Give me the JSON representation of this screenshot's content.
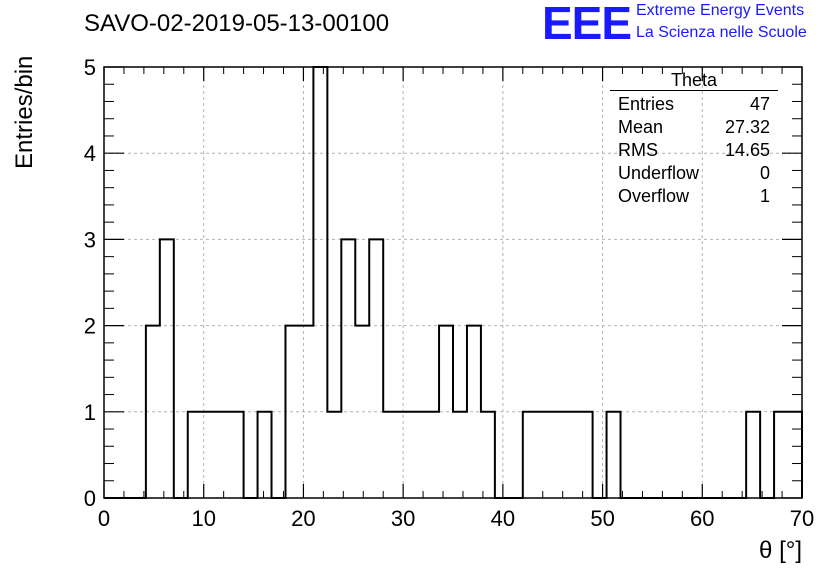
{
  "header": {
    "run_title": "SAVO-02-2019-05-13-00100",
    "logo_text": "EEE",
    "org_line1": "Extreme Energy Events",
    "org_line2": "La Scienza nelle Scuole"
  },
  "stats_box": {
    "name": "Theta",
    "rows": [
      {
        "label": "Entries",
        "value": "47"
      },
      {
        "label": "Mean",
        "value": "27.32"
      },
      {
        "label": "RMS",
        "value": "14.65"
      },
      {
        "label": "Underflow",
        "value": "0"
      },
      {
        "label": "Overflow",
        "value": "1"
      }
    ]
  },
  "colors": {
    "accent": "#1a1aff",
    "line": "#000000",
    "grid": "#b4b4b4"
  },
  "chart_data": {
    "type": "bar",
    "histogram": true,
    "title": "SAVO-02-2019-05-13-00100",
    "xlabel": "θ [°]",
    "ylabel": "Entries/bin",
    "xlim": [
      0,
      70
    ],
    "ylim": [
      0,
      5
    ],
    "grid": true,
    "x_ticks": [
      "0",
      "10",
      "20",
      "30",
      "40",
      "50",
      "60",
      "70"
    ],
    "y_ticks": [
      "0",
      "1",
      "2",
      "3",
      "4",
      "5"
    ],
    "bin_width": 1.4,
    "bins": [
      {
        "x": 4.2,
        "value": 2
      },
      {
        "x": 5.6,
        "value": 3
      },
      {
        "x": 8.4,
        "value": 1
      },
      {
        "x": 9.8,
        "value": 1
      },
      {
        "x": 11.2,
        "value": 1
      },
      {
        "x": 12.6,
        "value": 1
      },
      {
        "x": 15.4,
        "value": 1
      },
      {
        "x": 18.2,
        "value": 2
      },
      {
        "x": 19.6,
        "value": 2
      },
      {
        "x": 21.0,
        "value": 5
      },
      {
        "x": 22.4,
        "value": 1
      },
      {
        "x": 23.8,
        "value": 3
      },
      {
        "x": 25.2,
        "value": 2
      },
      {
        "x": 26.6,
        "value": 3
      },
      {
        "x": 28.0,
        "value": 1
      },
      {
        "x": 29.4,
        "value": 1
      },
      {
        "x": 30.8,
        "value": 1
      },
      {
        "x": 32.2,
        "value": 1
      },
      {
        "x": 33.6,
        "value": 2
      },
      {
        "x": 35.0,
        "value": 1
      },
      {
        "x": 36.4,
        "value": 2
      },
      {
        "x": 37.8,
        "value": 1
      },
      {
        "x": 42.0,
        "value": 1
      },
      {
        "x": 43.4,
        "value": 1
      },
      {
        "x": 44.8,
        "value": 1
      },
      {
        "x": 46.2,
        "value": 1
      },
      {
        "x": 47.6,
        "value": 1
      },
      {
        "x": 50.4,
        "value": 1
      },
      {
        "x": 64.4,
        "value": 1
      },
      {
        "x": 67.2,
        "value": 1
      },
      {
        "x": 68.6,
        "value": 1
      }
    ]
  }
}
